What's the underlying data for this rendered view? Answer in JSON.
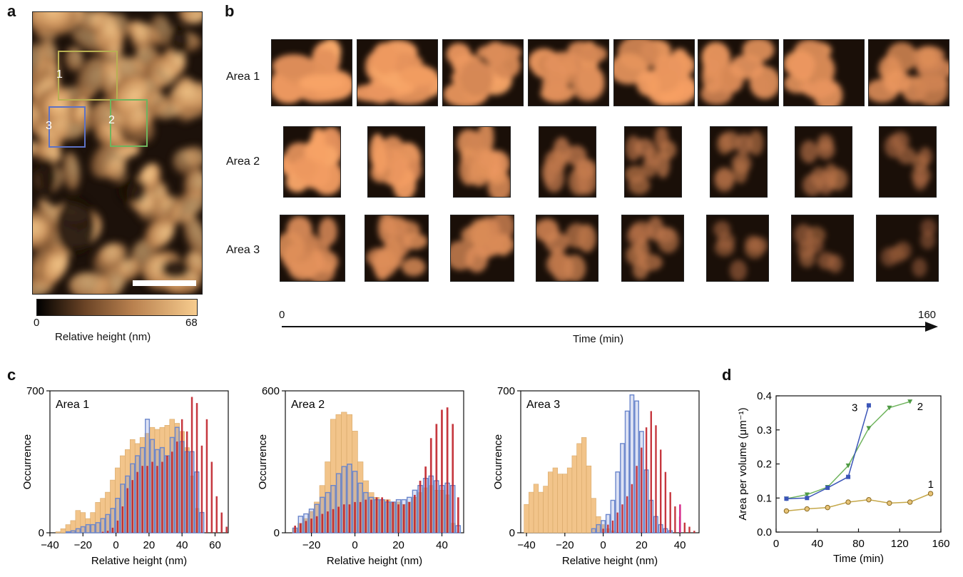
{
  "panels": {
    "a": "a",
    "b": "b",
    "c": "c",
    "d": "d"
  },
  "panel_a": {
    "box_labels": [
      "1",
      "2",
      "3"
    ],
    "box_colors": [
      "#b8b052",
      "#6fb45d",
      "#5d72c6"
    ],
    "colorbar": {
      "min": "0",
      "max": "68",
      "label": "Relative height (nm)",
      "colors": [
        "#000000",
        "#b9814f",
        "#f7cc8e"
      ]
    }
  },
  "panel_b": {
    "rows": [
      "Area 1",
      "Area 2",
      "Area 3"
    ],
    "time_axis": {
      "start": "0",
      "end": "160",
      "label": "Time (min)"
    },
    "frames_per_row": 8,
    "brightness": [
      [
        1.0,
        0.95,
        0.92,
        0.85,
        0.85,
        0.8,
        0.8,
        0.75
      ],
      [
        0.95,
        0.85,
        0.8,
        0.55,
        0.45,
        0.4,
        0.38,
        0.3
      ],
      [
        0.75,
        0.7,
        0.65,
        0.55,
        0.45,
        0.25,
        0.25,
        0.15
      ]
    ]
  },
  "chart_data": [
    {
      "type": "bar",
      "panel": "c",
      "title": "Area 1",
      "xlabel": "Relative height (nm)",
      "ylabel": "Occurrence",
      "xlim": [
        -40,
        68
      ],
      "ylim": [
        0,
        700
      ],
      "xticks": [
        "−40",
        "−20",
        "0",
        "20",
        "40",
        "60"
      ],
      "xtick_values": [
        -40,
        -20,
        0,
        20,
        40,
        60
      ],
      "yticks": [
        "0",
        "700"
      ],
      "ytick_values": [
        0,
        700
      ],
      "bin_width": 3,
      "series": [
        {
          "color": "#f2c48a",
          "style": "filled",
          "x": [
            -35,
            -32,
            -29,
            -26,
            -23,
            -20,
            -17,
            -14,
            -11,
            -8,
            -5,
            -2,
            1,
            4,
            7,
            10,
            13,
            16,
            19,
            22,
            25,
            28,
            31,
            34,
            37,
            40,
            43,
            46,
            49
          ],
          "values": [
            5,
            20,
            40,
            60,
            110,
            100,
            70,
            100,
            150,
            170,
            200,
            260,
            320,
            380,
            410,
            460,
            440,
            470,
            490,
            520,
            510,
            520,
            530,
            560,
            540,
            500,
            420,
            280,
            120
          ]
        },
        {
          "color": "#6a86cc",
          "style": "outline",
          "x": [
            -29,
            -26,
            -23,
            -20,
            -17,
            -14,
            -11,
            -8,
            -5,
            -2,
            1,
            4,
            7,
            10,
            13,
            16,
            19,
            22,
            25,
            28,
            31,
            34,
            37,
            40,
            43,
            46,
            49,
            52
          ],
          "values": [
            5,
            10,
            20,
            30,
            40,
            40,
            50,
            70,
            90,
            120,
            170,
            240,
            280,
            340,
            380,
            420,
            560,
            460,
            410,
            420,
            380,
            470,
            520,
            450,
            400,
            400,
            300,
            100
          ]
        },
        {
          "color": "#c0222a",
          "style": "thin",
          "x": [
            -8,
            -5,
            -2,
            1,
            4,
            7,
            10,
            13,
            16,
            19,
            22,
            25,
            28,
            31,
            34,
            37,
            40,
            43,
            46,
            49,
            52,
            55,
            58,
            61,
            64,
            67
          ],
          "values": [
            5,
            10,
            25,
            60,
            130,
            220,
            260,
            300,
            330,
            330,
            350,
            330,
            350,
            380,
            400,
            450,
            560,
            500,
            670,
            640,
            430,
            560,
            350,
            180,
            100,
            30
          ]
        }
      ]
    },
    {
      "type": "bar",
      "panel": "c",
      "title": "Area 2",
      "xlabel": "Relative height (nm)",
      "ylabel": "Occurrence",
      "xlim": [
        -32,
        50
      ],
      "ylim": [
        0,
        600
      ],
      "xticks": [
        "−20",
        "0",
        "20",
        "40"
      ],
      "xtick_values": [
        -20,
        0,
        20,
        40
      ],
      "yticks": [
        "0",
        "600"
      ],
      "ytick_values": [
        0,
        600
      ],
      "bin_width": 2.5,
      "series": [
        {
          "color": "#f2c48a",
          "style": "filled",
          "x": [
            -27.5,
            -25,
            -22.5,
            -20,
            -17.5,
            -15,
            -12.5,
            -10,
            -7.5,
            -5,
            -2.5,
            0,
            2.5,
            5,
            7.5,
            10,
            12.5,
            15,
            17.5,
            20,
            22.5,
            25,
            27.5,
            30,
            32.5,
            35,
            37.5,
            40,
            42.5,
            45
          ],
          "values": [
            20,
            40,
            60,
            90,
            130,
            200,
            300,
            480,
            500,
            510,
            500,
            430,
            300,
            220,
            170,
            150,
            140,
            140,
            130,
            130,
            120,
            130,
            150,
            170,
            190,
            200,
            180,
            180,
            160,
            40
          ]
        },
        {
          "color": "#6a86cc",
          "style": "outline",
          "x": [
            -27.5,
            -25,
            -22.5,
            -20,
            -17.5,
            -15,
            -12.5,
            -10,
            -7.5,
            -5,
            -2.5,
            0,
            2.5,
            5,
            7.5,
            10,
            12.5,
            15,
            17.5,
            20,
            22.5,
            25,
            27.5,
            30,
            32.5,
            35,
            37.5,
            40,
            42.5,
            45,
            47.5
          ],
          "values": [
            20,
            70,
            80,
            100,
            120,
            150,
            170,
            200,
            250,
            280,
            290,
            260,
            210,
            170,
            150,
            140,
            140,
            130,
            130,
            140,
            140,
            150,
            180,
            200,
            230,
            240,
            220,
            200,
            210,
            200,
            30
          ]
        },
        {
          "color": "#c0222a",
          "style": "thin",
          "x": [
            -27.5,
            -25,
            -22.5,
            -20,
            -17.5,
            -15,
            -12.5,
            -10,
            -7.5,
            -5,
            -2.5,
            0,
            2.5,
            5,
            7.5,
            10,
            12.5,
            15,
            17.5,
            20,
            22.5,
            25,
            27.5,
            30,
            32.5,
            35,
            37.5,
            40,
            42.5,
            45,
            47.5
          ],
          "values": [
            30,
            40,
            50,
            60,
            70,
            80,
            90,
            100,
            110,
            120,
            120,
            130,
            130,
            140,
            140,
            150,
            150,
            140,
            130,
            120,
            120,
            130,
            160,
            220,
            280,
            400,
            460,
            520,
            530,
            460,
            150
          ]
        }
      ]
    },
    {
      "type": "bar",
      "panel": "c",
      "title": "Area 3",
      "xlabel": "Relative height (nm)",
      "ylabel": "Occurrence",
      "xlim": [
        -43,
        50
      ],
      "ylim": [
        0,
        700
      ],
      "xticks": [
        "−40",
        "−20",
        "0",
        "20",
        "40"
      ],
      "xtick_values": [
        -40,
        -20,
        0,
        20,
        40
      ],
      "yticks": [
        "0",
        "700"
      ],
      "ytick_values": [
        0,
        700
      ],
      "bin_width": 2.5,
      "series": [
        {
          "color": "#f2c48a",
          "style": "filled",
          "x": [
            -40,
            -37.5,
            -35,
            -32.5,
            -30,
            -27.5,
            -25,
            -22.5,
            -20,
            -17.5,
            -15,
            -12.5,
            -10,
            -7.5,
            -5,
            -2.5,
            0,
            2.5,
            5
          ],
          "values": [
            140,
            200,
            240,
            200,
            230,
            300,
            320,
            290,
            290,
            320,
            380,
            440,
            470,
            330,
            170,
            80,
            40,
            20,
            10
          ]
        },
        {
          "color": "#6a86cc",
          "style": "outline",
          "x": [
            -5,
            -2.5,
            0,
            2.5,
            5,
            7.5,
            10,
            12.5,
            15,
            17.5,
            20,
            22.5,
            25,
            27.5,
            30,
            32.5,
            35
          ],
          "values": [
            20,
            40,
            60,
            90,
            160,
            300,
            440,
            600,
            680,
            650,
            500,
            310,
            160,
            80,
            40,
            20,
            10
          ]
        },
        {
          "color": "#c0222a",
          "style": "thin",
          "x": [
            0,
            2.5,
            5,
            7.5,
            10,
            12.5,
            15,
            17.5,
            20,
            22.5,
            25,
            27.5,
            30,
            32.5,
            35,
            37.5,
            40,
            42.5,
            45,
            47.5
          ],
          "values": [
            20,
            40,
            60,
            100,
            140,
            180,
            240,
            330,
            420,
            520,
            600,
            530,
            410,
            300,
            200,
            130,
            80,
            50,
            30,
            10
          ]
        },
        {
          "color": "#d62a8a",
          "style": "marker",
          "x": [
            40
          ],
          "values": [
            140
          ]
        }
      ]
    },
    {
      "type": "line",
      "panel": "d",
      "xlabel": "Time (min)",
      "ylabel": "Area per volume (μm⁻¹)",
      "xlim": [
        0,
        160
      ],
      "ylim": [
        0,
        0.4
      ],
      "xticks": [
        "0",
        "40",
        "80",
        "120",
        "160"
      ],
      "xtick_values": [
        0,
        40,
        80,
        120,
        160
      ],
      "yticks": [
        "0.0",
        "0.1",
        "0.2",
        "0.3",
        "0.4"
      ],
      "ytick_values": [
        0,
        0.1,
        0.2,
        0.3,
        0.4
      ],
      "series": [
        {
          "name": "1",
          "color": "#c5a84a",
          "marker": "circle",
          "x": [
            10,
            30,
            50,
            70,
            90,
            110,
            130,
            150
          ],
          "values": [
            0.062,
            0.068,
            0.072,
            0.088,
            0.095,
            0.085,
            0.088,
            0.113
          ]
        },
        {
          "name": "2",
          "color": "#6fb45d",
          "marker": "triangle",
          "x": [
            10,
            30,
            50,
            70,
            90,
            110,
            130
          ],
          "values": [
            0.098,
            0.11,
            0.132,
            0.195,
            0.305,
            0.365,
            0.383
          ]
        },
        {
          "name": "3",
          "color": "#3b55b8",
          "marker": "square",
          "x": [
            10,
            30,
            50,
            70,
            90
          ],
          "values": [
            0.098,
            0.1,
            0.13,
            0.162,
            0.372
          ]
        }
      ]
    }
  ]
}
